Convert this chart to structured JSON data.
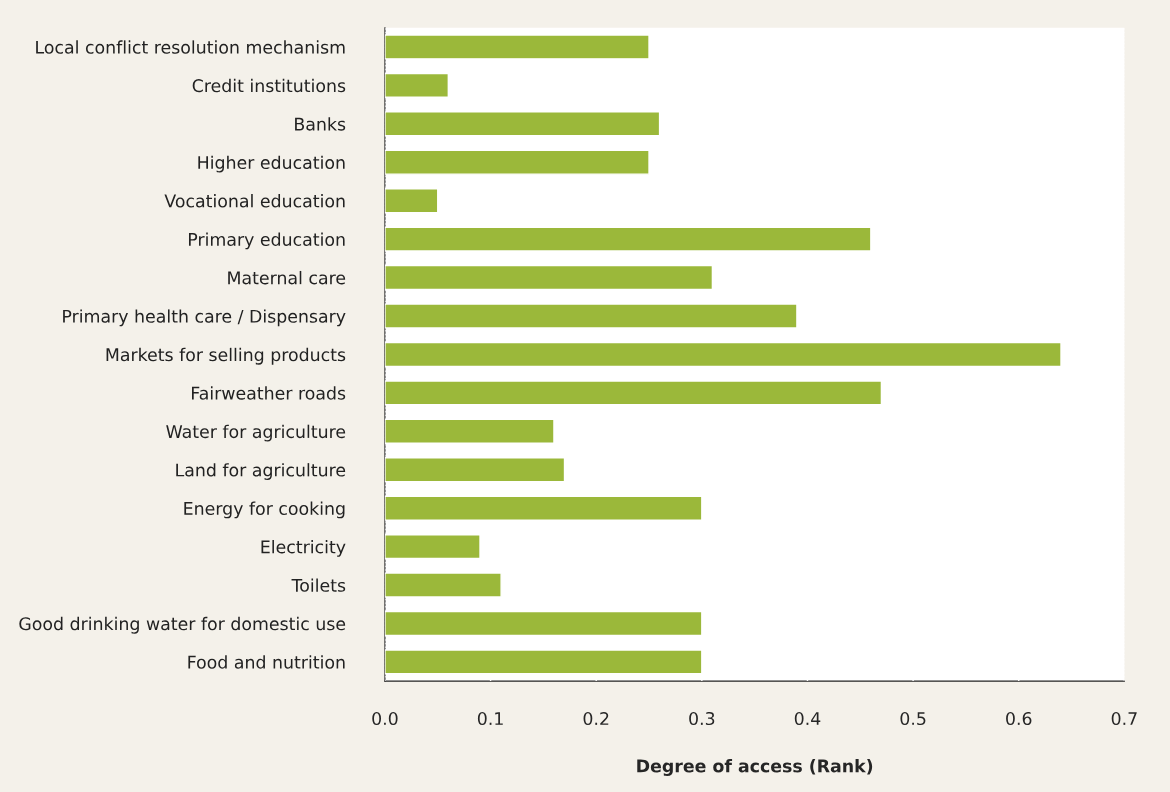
{
  "chart_data": {
    "type": "bar",
    "orientation": "horizontal",
    "xlabel": "Degree of access (Rank)",
    "categories": [
      "Local conflict resolution mechanism",
      "Credit institutions",
      "Banks",
      "Higher education",
      "Vocational education",
      "Primary education",
      "Maternal care",
      "Primary health care / Dispensary",
      "Markets for selling products",
      "Fairweather roads",
      "Water for agriculture",
      "Land for agriculture",
      "Energy for cooking",
      "Electricity",
      "Toilets",
      "Good drinking water for domestic use",
      "Food and nutrition"
    ],
    "values": [
      0.25,
      0.06,
      0.26,
      0.25,
      0.05,
      0.46,
      0.31,
      0.39,
      0.64,
      0.47,
      0.16,
      0.17,
      0.3,
      0.09,
      0.11,
      0.3,
      0.3
    ],
    "color": "#9bb83a",
    "xlim": [
      0,
      0.7
    ],
    "xticks": [
      {
        "value": 0,
        "label": "0.0"
      },
      0.1,
      0.2,
      0.3,
      0.4,
      0.5,
      0.6,
      0.7
    ],
    "grid": "x",
    "legend": false
  }
}
